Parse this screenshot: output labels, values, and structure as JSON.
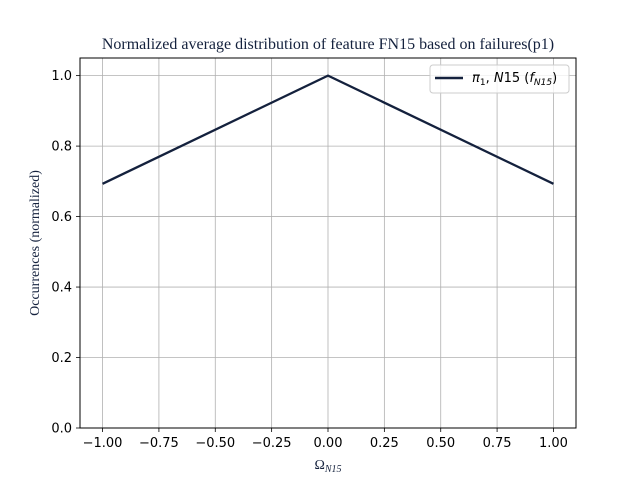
{
  "chart_data": {
    "type": "line",
    "title": "Normalized average distribution of feature FN15 based on failures(p1)",
    "xlabel": {
      "base": "Ω",
      "sub": "N15"
    },
    "ylabel": "Occurrences (normalized)",
    "xlim": [
      -1.1,
      1.1
    ],
    "ylim": [
      0.0,
      1.05
    ],
    "x_ticks": [
      -1.0,
      -0.75,
      -0.5,
      -0.25,
      0.0,
      0.25,
      0.5,
      0.75,
      1.0
    ],
    "x_tick_labels": [
      "−1.00",
      "−0.75",
      "−0.50",
      "−0.25",
      "0.00",
      "0.25",
      "0.50",
      "0.75",
      "1.00"
    ],
    "y_ticks": [
      0.0,
      0.2,
      0.4,
      0.6,
      0.8,
      1.0
    ],
    "y_tick_labels": [
      "0.0",
      "0.2",
      "0.4",
      "0.6",
      "0.8",
      "1.0"
    ],
    "grid": true,
    "legend_position": "top-right",
    "series": [
      {
        "name": "π1, N15 (fN15)",
        "legend": {
          "pi": "π",
          "pi_sub": "1",
          "mid": ", ",
          "n": "N",
          "n_rest": "15 (",
          "f": "f",
          "f_sub": "N15",
          "close": ")"
        },
        "color": "#14213d",
        "x": [
          -1.0,
          0.0,
          1.0
        ],
        "y": [
          0.693,
          1.0,
          0.693
        ]
      }
    ]
  }
}
